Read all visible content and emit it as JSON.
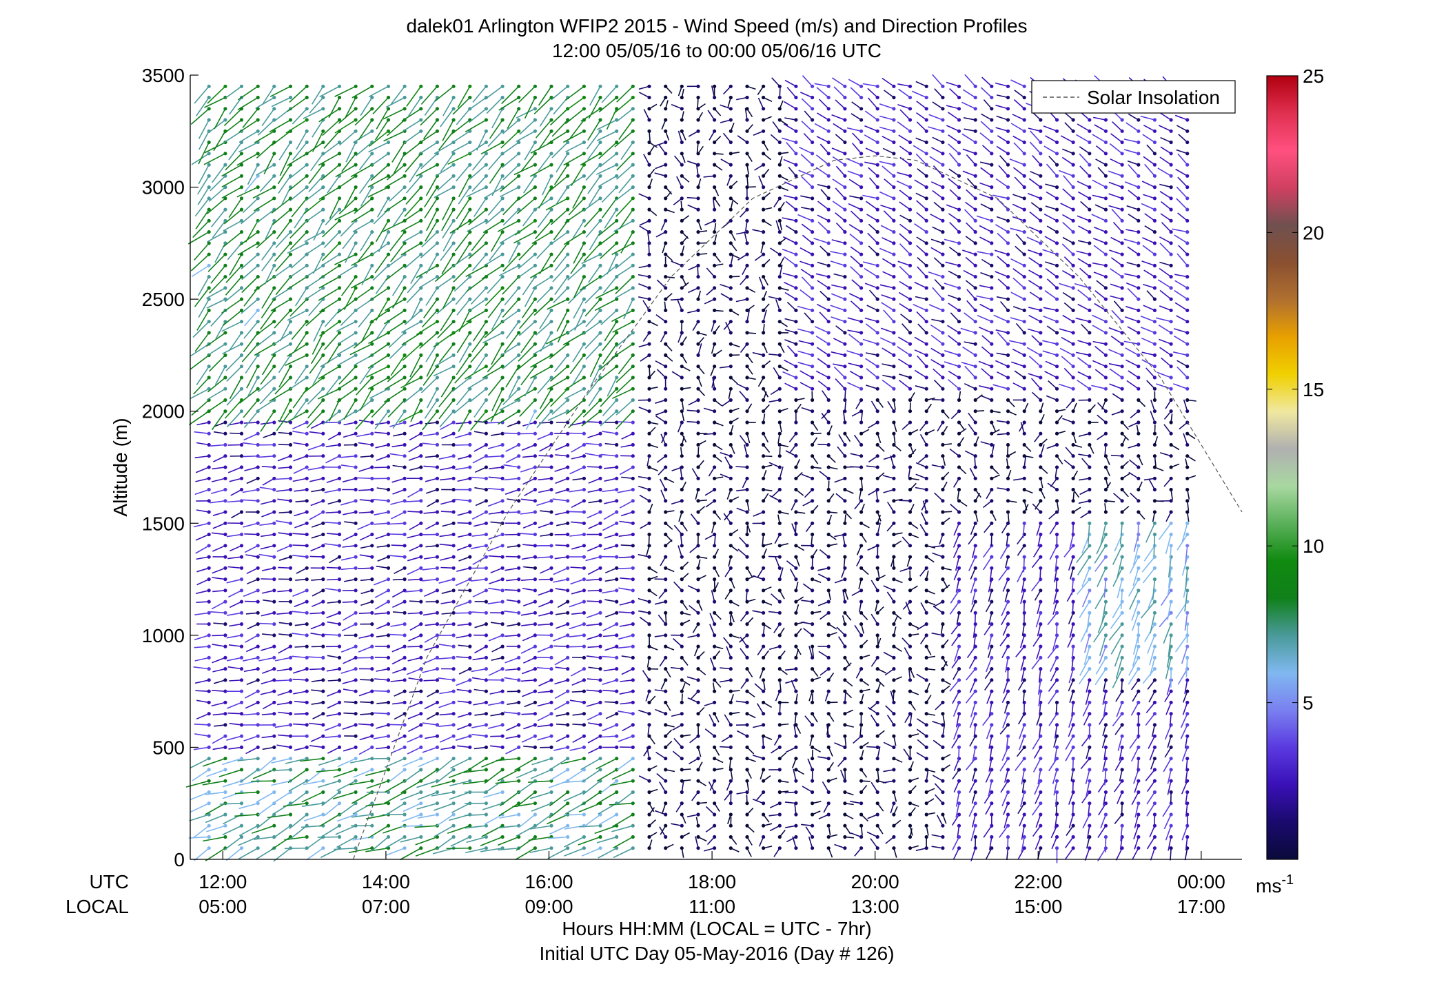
{
  "chart_data": {
    "type": "scatter",
    "subtype": "wind-barb profile (colored by speed)",
    "title": "dalek01 Arlington WFIP2 2015 - Wind Speed (m/s) and Direction Profiles",
    "subtitle": "12:00 05/05/16 to 00:00 05/06/16  UTC",
    "ylabel": "Altitude (m)",
    "xlabel": "Hours HH:MM  (LOCAL = UTC - 7hr)",
    "xlabel2": "Initial UTC Day 05-May-2016 (Day # 126)",
    "xlim_hours": [
      11.6,
      24.5
    ],
    "ylim": [
      0,
      3500
    ],
    "y_ticks": [
      0,
      500,
      1000,
      1500,
      2000,
      2500,
      3000,
      3500
    ],
    "x_tick_hours": [
      12,
      14,
      16,
      18,
      20,
      22,
      24
    ],
    "x_row_labels": {
      "utc": "UTC",
      "local": "LOCAL"
    },
    "x_ticks_utc": [
      "12:00",
      "14:00",
      "16:00",
      "18:00",
      "20:00",
      "22:00",
      "00:00"
    ],
    "x_ticks_local": [
      "05:00",
      "07:00",
      "09:00",
      "11:00",
      "13:00",
      "15:00",
      "17:00"
    ],
    "legend": {
      "entries": [
        "Solar Insolation"
      ],
      "placement": "top-right",
      "line_style": "dashed"
    },
    "colorbar": {
      "min": 0,
      "max": 25,
      "ticks": [
        5,
        10,
        15,
        20,
        25
      ],
      "unit_base": "ms",
      "unit_exp": "-1",
      "colors": [
        "#0a0a3a",
        "#1a0a6e",
        "#3a10b8",
        "#5a3ae0",
        "#7a80f0",
        "#80b8f0",
        "#4a9a9a",
        "#10801a",
        "#108a10",
        "#5ab05a",
        "#a8d8a0",
        "#b0b0b0",
        "#f0e8a0",
        "#f0d000",
        "#e8a000",
        "#b07030",
        "#8a5030",
        "#705050",
        "#d04060",
        "#ff5080",
        "#e03050",
        "#b00010"
      ]
    },
    "solar_insolation_curve": {
      "x_hours": [
        13.6,
        14.5,
        15.5,
        16.5,
        17.5,
        18.5,
        19.5,
        20.0,
        20.5,
        21.5,
        22.5,
        23.5,
        24.5
      ],
      "y_m": [
        0,
        900,
        1550,
        2100,
        2600,
        2950,
        3120,
        3140,
        3120,
        2950,
        2600,
        2150,
        1550
      ]
    },
    "barb_grid": {
      "x_start_hour": 11.83,
      "x_step_hours": 0.2,
      "x_count": 61,
      "y_start_m": 50,
      "y_step_m": 50,
      "y_count": 69
    },
    "wind_regimes": [
      {
        "region": "12:00-17:00 UTC, 0-500 m",
        "speed_ms": 7.5,
        "direction_deg": 250
      },
      {
        "region": "12:00-17:00 UTC, 2000-3500 m",
        "speed_ms": 8.0,
        "direction_deg": 225
      },
      {
        "region": "12:00-17:00 UTC, 500-2000 m",
        "speed_ms": 3.0,
        "direction_deg": 260
      },
      {
        "region": "17:00-21:00 UTC, 0-2500 m",
        "speed_ms": 1.0,
        "direction_deg": "variable"
      },
      {
        "region": "19:00-24:00 UTC, 2000-3500 m",
        "speed_ms": 3.0,
        "direction_deg": 300
      },
      {
        "region": "21:00-24:00 UTC, 0-1500 m",
        "speed_ms": 3.0,
        "direction_deg": 200
      },
      {
        "region": "22:30-24:00 UTC, 800-1500 m",
        "speed_ms": 6.5,
        "direction_deg": 200
      }
    ]
  }
}
